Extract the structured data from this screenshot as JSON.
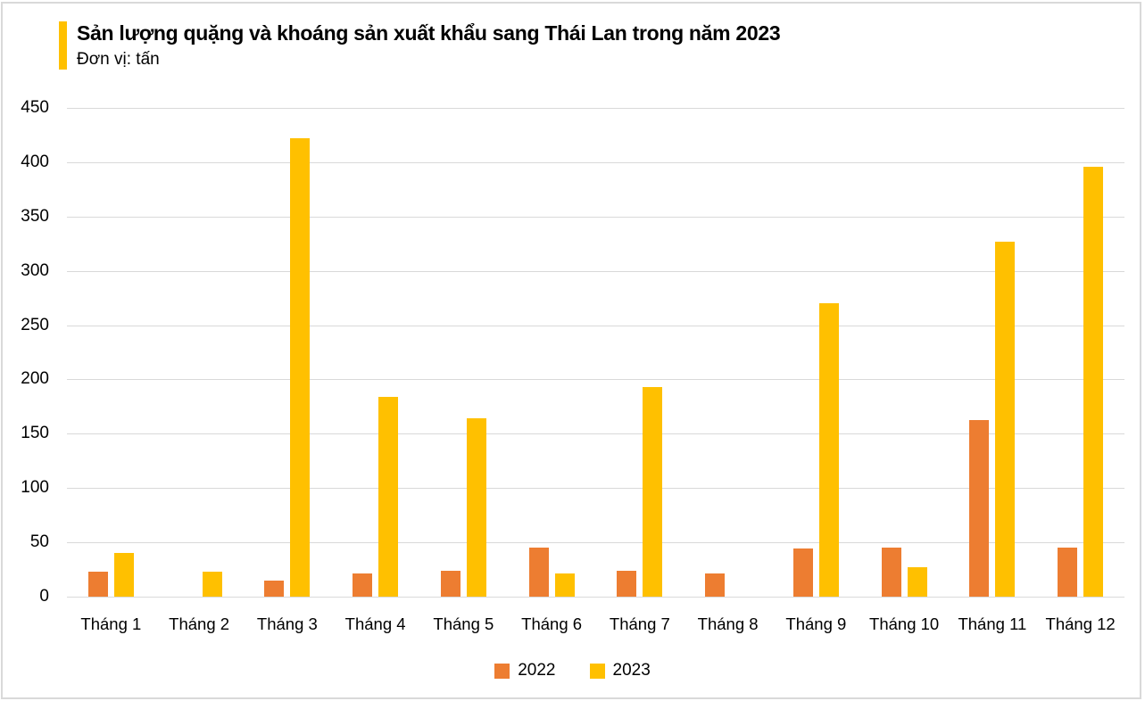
{
  "header": {
    "title": "Sản lượng quặng và khoáng sản xuất khẩu sang Thái Lan trong năm 2023",
    "subtitle": "Đơn vị: tấn"
  },
  "colors": {
    "accent_bar": "#FFC000",
    "series_2022": "#ED7D31",
    "series_2023": "#FFC000",
    "gridline": "#D9D9D9",
    "text": "#000000"
  },
  "chart_data": {
    "type": "bar",
    "title": "Sản lượng quặng và khoáng sản xuất khẩu sang Thái Lan trong năm 2023",
    "subtitle": "Đơn vị: tấn",
    "unit": "tấn",
    "categories": [
      "Tháng 1",
      "Tháng 2",
      "Tháng 3",
      "Tháng 4",
      "Tháng 5",
      "Tháng 6",
      "Tháng 7",
      "Tháng 8",
      "Tháng 9",
      "Tháng 10",
      "Tháng 11",
      "Tháng 12"
    ],
    "series": [
      {
        "name": "2022",
        "color": "#ED7D31",
        "values": [
          23,
          0,
          15,
          21,
          24,
          45,
          24,
          21,
          44,
          45,
          163,
          45
        ]
      },
      {
        "name": "2023",
        "color": "#FFC000",
        "values": [
          40,
          23,
          422,
          184,
          164,
          21,
          193,
          0,
          270,
          27,
          327,
          396
        ]
      }
    ],
    "xlabel": "",
    "ylabel": "",
    "ylim": [
      0,
      450
    ],
    "ytick_step": 50,
    "grid": true,
    "legend_position": "bottom"
  }
}
